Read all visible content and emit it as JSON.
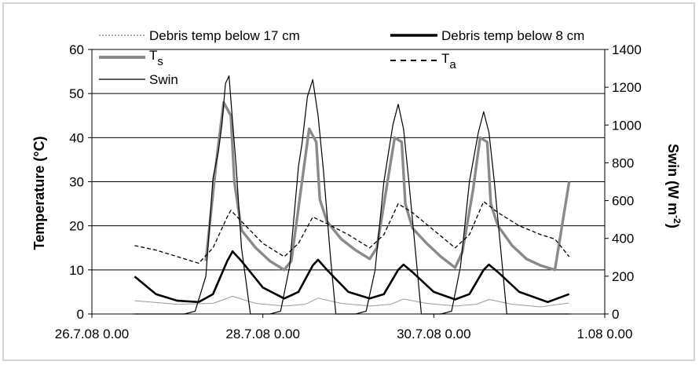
{
  "chart_data": {
    "type": "line",
    "title": "",
    "x_axis": {
      "min": "2008-07-26T00:00",
      "max": "2008-08-01T00:00",
      "ticks": [
        "26.7.08 0.00",
        "28.7.08 0.00",
        "30.7.08 0.00",
        "1.08 0.00"
      ],
      "xlabel": ""
    },
    "y_left": {
      "label": "Temperature (°C)",
      "ylim": [
        0,
        60
      ],
      "ticks": [
        "0",
        "10",
        "20",
        "30",
        "40",
        "50",
        "60"
      ]
    },
    "y_right": {
      "label_main": "Swin (W m",
      "label_sup": "-2",
      "label_close": ")",
      "ylim": [
        0,
        1400
      ],
      "ticks": [
        "0",
        "200",
        "400",
        "600",
        "800",
        "1000",
        "1200",
        "1400"
      ]
    },
    "grid": "horizontal major gridlines",
    "legend": {
      "placement": "top",
      "entries": [
        {
          "label": "Debris temp below 17 cm",
          "style": "dotted",
          "color": "#777777"
        },
        {
          "label": "Debris temp below 8 cm",
          "style": "solid-thick",
          "color": "#000000"
        },
        {
          "label": "T",
          "sub": "s",
          "style": "solid-thick",
          "color": "#888888"
        },
        {
          "label": "T",
          "sub": "a",
          "style": "dashed",
          "color": "#000000"
        },
        {
          "label": "Swin",
          "style": "solid-thin",
          "color": "#000000"
        }
      ]
    },
    "series": [
      {
        "name": "Debris temp below 17 cm",
        "axis": "left",
        "color": "#9a9a9a",
        "width": 1,
        "x": [
          "2008-07-26T12:00",
          "2008-07-27T00:00",
          "2008-07-27T10:00",
          "2008-07-27T15:30",
          "2008-07-27T22:00",
          "2008-07-28T06:00",
          "2008-07-28T12:00",
          "2008-07-28T15:30",
          "2008-07-28T22:00",
          "2008-07-29T06:00",
          "2008-07-29T12:00",
          "2008-07-29T15:30",
          "2008-07-29T22:00",
          "2008-07-30T06:00",
          "2008-07-30T12:00",
          "2008-07-30T15:30",
          "2008-07-30T22:00",
          "2008-07-31T06:00",
          "2008-07-31T14:00"
        ],
        "y": [
          3,
          2.2,
          2.4,
          4,
          2.4,
          1.8,
          2.2,
          3.6,
          2.4,
          1.8,
          2.2,
          3.4,
          2.4,
          1.8,
          2.2,
          3.3,
          2.2,
          1.6,
          2.5
        ]
      },
      {
        "name": "Debris temp below 8 cm",
        "axis": "left",
        "color": "#000000",
        "width": 2.6,
        "x": [
          "2008-07-26T12:00",
          "2008-07-26T18:00",
          "2008-07-27T00:00",
          "2008-07-27T06:00",
          "2008-07-27T10:00",
          "2008-07-27T14:00",
          "2008-07-27T15:30",
          "2008-07-27T18:00",
          "2008-07-28T00:00",
          "2008-07-28T06:00",
          "2008-07-28T10:00",
          "2008-07-28T14:00",
          "2008-07-28T15:30",
          "2008-07-28T18:00",
          "2008-07-29T00:00",
          "2008-07-29T06:00",
          "2008-07-29T10:00",
          "2008-07-29T14:00",
          "2008-07-29T15:30",
          "2008-07-29T18:00",
          "2008-07-30T00:00",
          "2008-07-30T06:00",
          "2008-07-30T10:00",
          "2008-07-30T14:00",
          "2008-07-30T15:30",
          "2008-07-30T18:00",
          "2008-07-31T00:00",
          "2008-07-31T08:00",
          "2008-07-31T14:00"
        ],
        "y": [
          8.5,
          4.5,
          3,
          2.7,
          4.5,
          12,
          14.2,
          12,
          6,
          3.5,
          5,
          11,
          12.3,
          10,
          5,
          3.5,
          4.5,
          10,
          11.2,
          9.5,
          5,
          3.3,
          4.5,
          10,
          11.2,
          9.5,
          5,
          2.7,
          4.5
        ]
      },
      {
        "name": "Ts",
        "axis": "left",
        "color": "#8a8a8a",
        "width": 3.4,
        "x": [
          "2008-07-27T08:00",
          "2008-07-27T11:00",
          "2008-07-27T13:00",
          "2008-07-27T15:00",
          "2008-07-27T16:00",
          "2008-07-27T18:00",
          "2008-07-27T22:00",
          "2008-07-28T02:00",
          "2008-07-28T06:00",
          "2008-07-28T08:00",
          "2008-07-28T11:00",
          "2008-07-28T13:00",
          "2008-07-28T15:00",
          "2008-07-28T16:00",
          "2008-07-28T18:00",
          "2008-07-28T22:00",
          "2008-07-29T02:00",
          "2008-07-29T06:00",
          "2008-07-29T08:00",
          "2008-07-29T11:00",
          "2008-07-29T13:00",
          "2008-07-29T15:00",
          "2008-07-29T16:00",
          "2008-07-29T18:00",
          "2008-07-29T22:00",
          "2008-07-30T02:00",
          "2008-07-30T06:00",
          "2008-07-30T08:00",
          "2008-07-30T11:00",
          "2008-07-30T13:00",
          "2008-07-30T15:00",
          "2008-07-30T16:00",
          "2008-07-30T18:00",
          "2008-07-30T22:00",
          "2008-07-31T02:00",
          "2008-07-31T06:00",
          "2008-07-31T10:00",
          "2008-07-31T14:00"
        ],
        "y": [
          12,
          35,
          48,
          45,
          30,
          19,
          15,
          12,
          10,
          12,
          30,
          42,
          39,
          26,
          21,
          17,
          14.5,
          12.5,
          15,
          30,
          40,
          39,
          25,
          19.5,
          16,
          13,
          10.5,
          14,
          28,
          40,
          39,
          25,
          20,
          15.5,
          12.5,
          11,
          10,
          30
        ]
      },
      {
        "name": "Ta",
        "axis": "left",
        "color": "#000000",
        "width": 1.3,
        "x": [
          "2008-07-26T12:00",
          "2008-07-26T18:00",
          "2008-07-27T00:00",
          "2008-07-27T06:00",
          "2008-07-27T10:00",
          "2008-07-27T14:00",
          "2008-07-27T15:00",
          "2008-07-27T18:00",
          "2008-07-28T00:00",
          "2008-07-28T06:00",
          "2008-07-28T10:00",
          "2008-07-28T14:00",
          "2008-07-28T18:00",
          "2008-07-29T00:00",
          "2008-07-29T06:00",
          "2008-07-29T10:00",
          "2008-07-29T14:00",
          "2008-07-29T18:00",
          "2008-07-30T00:00",
          "2008-07-30T06:00",
          "2008-07-30T10:00",
          "2008-07-30T14:00",
          "2008-07-30T18:00",
          "2008-07-31T00:00",
          "2008-07-31T06:00",
          "2008-07-31T10:00",
          "2008-07-31T14:00"
        ],
        "y": [
          15.5,
          14.5,
          13,
          11.5,
          15,
          22,
          23.5,
          21,
          16,
          13,
          16,
          22,
          20.5,
          18,
          15,
          18,
          25,
          23,
          19,
          15,
          18,
          25.5,
          23,
          20,
          18,
          17,
          13
        ]
      },
      {
        "name": "Swin",
        "axis": "right",
        "color": "#000000",
        "width": 1.2,
        "x": [
          "2008-07-26T12:00",
          "2008-07-27T02:00",
          "2008-07-27T05:00",
          "2008-07-27T08:00",
          "2008-07-27T10:00",
          "2008-07-27T11:30",
          "2008-07-27T12:30",
          "2008-07-27T13:30",
          "2008-07-27T14:30",
          "2008-07-27T15:30",
          "2008-07-27T16:30",
          "2008-07-27T18:00",
          "2008-07-27T20:30",
          "2008-07-28T02:00",
          "2008-07-28T05:00",
          "2008-07-28T07:30",
          "2008-07-28T10:00",
          "2008-07-28T11:00",
          "2008-07-28T12:30",
          "2008-07-28T14:00",
          "2008-07-28T15:30",
          "2008-07-28T17:00",
          "2008-07-28T19:00",
          "2008-07-28T20:30",
          "2008-07-29T02:00",
          "2008-07-29T05:00",
          "2008-07-29T07:30",
          "2008-07-29T10:00",
          "2008-07-29T12:30",
          "2008-07-29T14:00",
          "2008-07-29T15:30",
          "2008-07-29T17:00",
          "2008-07-29T19:00",
          "2008-07-29T20:30",
          "2008-07-30T02:00",
          "2008-07-30T05:00",
          "2008-07-30T07:30",
          "2008-07-30T10:00",
          "2008-07-30T12:30",
          "2008-07-30T14:00",
          "2008-07-30T15:30",
          "2008-07-30T17:00",
          "2008-07-30T19:00",
          "2008-07-30T20:30",
          "2008-07-31T02:00",
          "2008-07-31T14:00"
        ],
        "y": [
          0,
          0,
          15,
          200,
          720,
          860,
          1000,
          1220,
          1260,
          1020,
          780,
          350,
          0,
          0,
          15,
          250,
          780,
          900,
          1150,
          1240,
          1050,
          760,
          300,
          0,
          0,
          15,
          230,
          700,
          1000,
          1110,
          980,
          700,
          300,
          0,
          0,
          15,
          250,
          700,
          960,
          1070,
          960,
          700,
          300,
          0,
          0,
          0
        ]
      }
    ]
  }
}
